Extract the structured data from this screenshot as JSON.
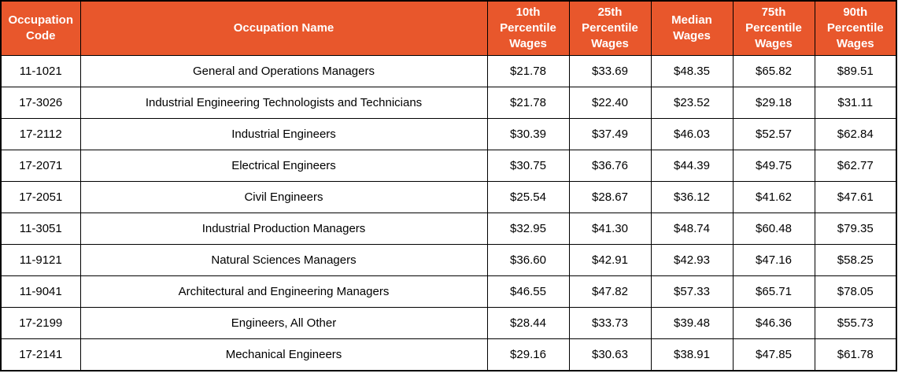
{
  "chart_data": {
    "type": "table",
    "columns": [
      "Occupation Code",
      "Occupation Name",
      "10th Percentile Wages",
      "25th Percentile Wages",
      "Median Wages",
      "75th Percentile Wages",
      "90th Percentile Wages"
    ],
    "rows": [
      [
        "11-1021",
        "General and Operations Managers",
        "$21.78",
        "$33.69",
        "$48.35",
        "$65.82",
        "$89.51"
      ],
      [
        "17-3026",
        "Industrial Engineering Technologists and Technicians",
        "$21.78",
        "$22.40",
        "$23.52",
        "$29.18",
        "$31.11"
      ],
      [
        "17-2112",
        "Industrial Engineers",
        "$30.39",
        "$37.49",
        "$46.03",
        "$52.57",
        "$62.84"
      ],
      [
        "17-2071",
        "Electrical Engineers",
        "$30.75",
        "$36.76",
        "$44.39",
        "$49.75",
        "$62.77"
      ],
      [
        "17-2051",
        "Civil Engineers",
        "$25.54",
        "$28.67",
        "$36.12",
        "$41.62",
        "$47.61"
      ],
      [
        "11-3051",
        "Industrial Production Managers",
        "$32.95",
        "$41.30",
        "$48.74",
        "$60.48",
        "$79.35"
      ],
      [
        "11-9121",
        "Natural Sciences Managers",
        "$36.60",
        "$42.91",
        "$42.93",
        "$47.16",
        "$58.25"
      ],
      [
        "11-9041",
        "Architectural and Engineering Managers",
        "$46.55",
        "$47.82",
        "$57.33",
        "$65.71",
        "$78.05"
      ],
      [
        "17-2199",
        "Engineers, All Other",
        "$28.44",
        "$33.73",
        "$39.48",
        "$46.36",
        "$55.73"
      ],
      [
        "17-2141",
        "Mechanical Engineers",
        "$29.16",
        "$30.63",
        "$38.91",
        "$47.85",
        "$61.78"
      ]
    ]
  },
  "colors": {
    "header_bg": "#E8572C",
    "header_text": "#FFFFFF",
    "border": "#000000",
    "body_bg": "#FFFFFF",
    "body_text": "#000000"
  }
}
